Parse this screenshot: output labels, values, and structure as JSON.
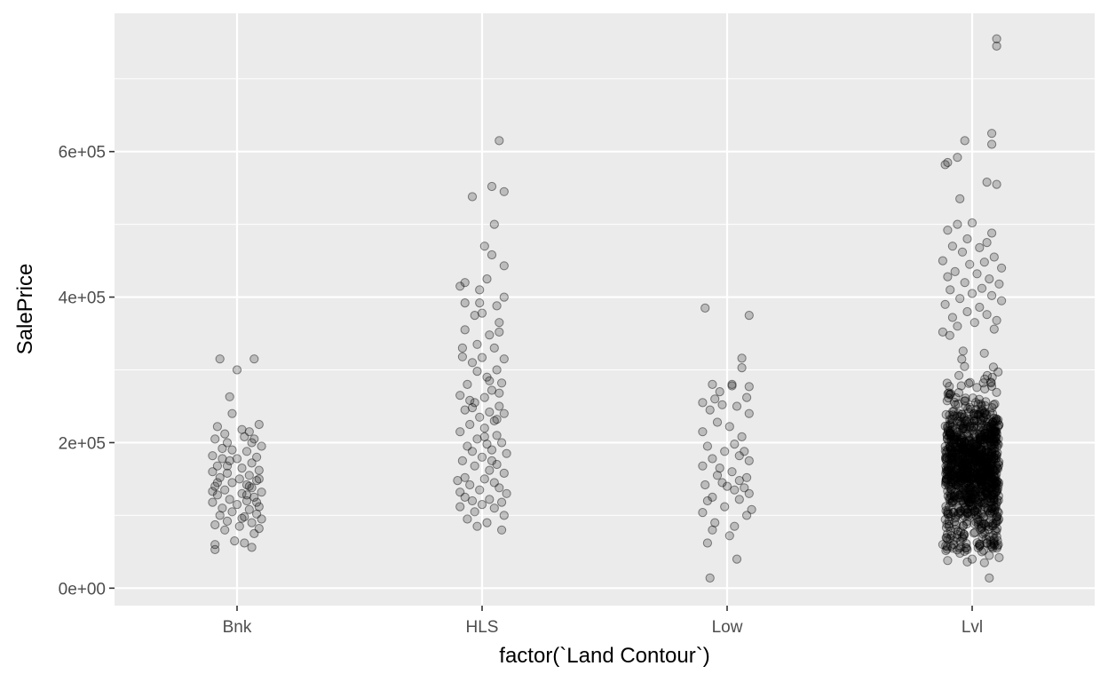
{
  "chart_data": {
    "type": "scatter",
    "style": "jitter",
    "title": "",
    "xlabel": "factor(`Land Contour`)",
    "ylabel": "SalePrice",
    "categories": [
      "Bnk",
      "HLS",
      "Low",
      "Lvl"
    ],
    "ylim": [
      -24000,
      790000
    ],
    "yticks": [
      {
        "value": 0,
        "label": "0e+00"
      },
      {
        "value": 200000,
        "label": "2e+05"
      },
      {
        "value": 400000,
        "label": "4e+05"
      },
      {
        "value": 600000,
        "label": "6e+05"
      }
    ],
    "grid": true,
    "legend": "none",
    "colors": {
      "panel": "#ebebeb",
      "grid": "#ffffff",
      "point_fill": "rgba(0,0,0,0.2)",
      "point_stroke": "rgba(0,0,0,0.45)"
    },
    "series": [
      {
        "category": "Bnk",
        "points": [
          [
            -0.07,
            315000
          ],
          [
            0.07,
            315000
          ],
          [
            0.0,
            300000
          ],
          [
            -0.03,
            263000
          ],
          [
            -0.02,
            240000
          ],
          [
            -0.08,
            222000
          ],
          [
            0.09,
            225000
          ],
          [
            0.02,
            218000
          ],
          [
            0.05,
            215000
          ],
          [
            -0.05,
            212000
          ],
          [
            -0.09,
            205000
          ],
          [
            0.03,
            208000
          ],
          [
            0.07,
            205000
          ],
          [
            -0.04,
            200000
          ],
          [
            0.1,
            195000
          ],
          [
            -0.06,
            192000
          ],
          [
            0.04,
            188000
          ],
          [
            -0.1,
            182000
          ],
          [
            0.08,
            180000
          ],
          [
            0.0,
            178000
          ],
          [
            -0.03,
            175000
          ],
          [
            0.06,
            172000
          ],
          [
            -0.08,
            168000
          ],
          [
            0.02,
            165000
          ],
          [
            0.09,
            162000
          ],
          [
            -0.1,
            160000
          ],
          [
            -0.04,
            158000
          ],
          [
            0.05,
            155000
          ],
          [
            -0.07,
            152000
          ],
          [
            0.01,
            150000
          ],
          [
            0.08,
            148000
          ],
          [
            -0.02,
            145000
          ],
          [
            0.04,
            142000
          ],
          [
            -0.09,
            140000
          ],
          [
            0.06,
            138000
          ],
          [
            -0.05,
            135000
          ],
          [
            0.1,
            132000
          ],
          [
            0.02,
            130000
          ],
          [
            -0.08,
            128000
          ],
          [
            0.07,
            125000
          ],
          [
            -0.03,
            122000
          ],
          [
            0.04,
            120000
          ],
          [
            -0.1,
            118000
          ],
          [
            0.0,
            115000
          ],
          [
            0.09,
            112000
          ],
          [
            -0.06,
            110000
          ],
          [
            0.05,
            108000
          ],
          [
            -0.02,
            105000
          ],
          [
            0.08,
            102000
          ],
          [
            -0.07,
            100000
          ],
          [
            0.03,
            98000
          ],
          [
            0.1,
            95000
          ],
          [
            -0.04,
            92000
          ],
          [
            0.06,
            90000
          ],
          [
            -0.09,
            87000
          ],
          [
            0.01,
            85000
          ],
          [
            0.09,
            82000
          ],
          [
            -0.05,
            80000
          ],
          [
            0.07,
            75000
          ],
          [
            -0.01,
            65000
          ],
          [
            0.03,
            62000
          ],
          [
            -0.09,
            60000
          ],
          [
            0.06,
            56000
          ],
          [
            -0.09,
            53000
          ],
          [
            0.05,
            140000
          ],
          [
            -0.06,
            178000
          ],
          [
            0.09,
            150000
          ],
          [
            -0.02,
            190000
          ],
          [
            0.04,
            128000
          ],
          [
            -0.08,
            145000
          ],
          [
            0.02,
            96000
          ],
          [
            0.08,
            118000
          ],
          [
            -0.04,
            168000
          ],
          [
            0.06,
            200000
          ],
          [
            -0.1,
            133000
          ]
        ]
      },
      {
        "category": "HLS",
        "points": [
          [
            0.07,
            615000
          ],
          [
            0.04,
            552000
          ],
          [
            0.09,
            545000
          ],
          [
            -0.04,
            538000
          ],
          [
            0.05,
            500000
          ],
          [
            0.01,
            470000
          ],
          [
            0.04,
            458000
          ],
          [
            0.09,
            443000
          ],
          [
            0.02,
            425000
          ],
          [
            -0.09,
            415000
          ],
          [
            -0.01,
            410000
          ],
          [
            0.09,
            400000
          ],
          [
            -0.07,
            392000
          ],
          [
            0.06,
            388000
          ],
          [
            0.0,
            378000
          ],
          [
            -0.03,
            375000
          ],
          [
            0.07,
            365000
          ],
          [
            -0.07,
            355000
          ],
          [
            0.03,
            348000
          ],
          [
            -0.02,
            335000
          ],
          [
            0.05,
            330000
          ],
          [
            -0.08,
            318000
          ],
          [
            0.0,
            317000
          ],
          [
            0.09,
            315000
          ],
          [
            -0.04,
            310000
          ],
          [
            0.06,
            300000
          ],
          [
            -0.02,
            298000
          ],
          [
            0.02,
            290000
          ],
          [
            -0.06,
            280000
          ],
          [
            0.08,
            282000
          ],
          [
            0.04,
            272000
          ],
          [
            -0.09,
            265000
          ],
          [
            0.01,
            262000
          ],
          [
            -0.03,
            255000
          ],
          [
            0.07,
            250000
          ],
          [
            -0.07,
            245000
          ],
          [
            0.03,
            242000
          ],
          [
            0.09,
            240000
          ],
          [
            -0.01,
            235000
          ],
          [
            0.05,
            230000
          ],
          [
            -0.05,
            225000
          ],
          [
            0.01,
            220000
          ],
          [
            -0.09,
            215000
          ],
          [
            0.06,
            210000
          ],
          [
            -0.02,
            205000
          ],
          [
            0.08,
            200000
          ],
          [
            0.02,
            198000
          ],
          [
            -0.06,
            195000
          ],
          [
            0.04,
            190000
          ],
          [
            -0.04,
            188000
          ],
          [
            0.1,
            185000
          ],
          [
            0.0,
            180000
          ],
          [
            -0.08,
            175000
          ],
          [
            0.06,
            170000
          ],
          [
            -0.03,
            168000
          ],
          [
            0.03,
            162000
          ],
          [
            0.09,
            158000
          ],
          [
            -0.07,
            152000
          ],
          [
            0.01,
            150000
          ],
          [
            -0.1,
            148000
          ],
          [
            0.05,
            145000
          ],
          [
            -0.05,
            142000
          ],
          [
            0.07,
            138000
          ],
          [
            -0.01,
            135000
          ],
          [
            0.1,
            130000
          ],
          [
            -0.07,
            125000
          ],
          [
            0.03,
            122000
          ],
          [
            -0.04,
            120000
          ],
          [
            0.08,
            118000
          ],
          [
            0.0,
            115000
          ],
          [
            -0.09,
            112000
          ],
          [
            0.05,
            110000
          ],
          [
            -0.03,
            105000
          ],
          [
            0.09,
            100000
          ],
          [
            -0.06,
            95000
          ],
          [
            0.02,
            90000
          ],
          [
            -0.02,
            85000
          ],
          [
            0.08,
            80000
          ],
          [
            -0.07,
            420000
          ],
          [
            0.07,
            352000
          ],
          [
            -0.01,
            392000
          ],
          [
            0.03,
            285000
          ],
          [
            -0.08,
            330000
          ],
          [
            0.06,
            232000
          ],
          [
            -0.04,
            248000
          ],
          [
            0.01,
            208000
          ],
          [
            -0.05,
            258000
          ],
          [
            0.04,
            175000
          ],
          [
            -0.09,
            132000
          ],
          [
            0.07,
            268000
          ]
        ]
      },
      {
        "category": "Low",
        "points": [
          [
            -0.09,
            385000
          ],
          [
            0.09,
            375000
          ],
          [
            0.06,
            316000
          ],
          [
            0.06,
            303000
          ],
          [
            -0.06,
            280000
          ],
          [
            0.02,
            278000
          ],
          [
            0.09,
            277000
          ],
          [
            -0.03,
            270000
          ],
          [
            -0.1,
            255000
          ],
          [
            -0.05,
            260000
          ],
          [
            0.08,
            262000
          ],
          [
            -0.02,
            252000
          ],
          [
            0.04,
            250000
          ],
          [
            -0.07,
            245000
          ],
          [
            0.09,
            240000
          ],
          [
            -0.1,
            215000
          ],
          [
            0.01,
            222000
          ],
          [
            -0.04,
            228000
          ],
          [
            0.06,
            208000
          ],
          [
            0.03,
            198000
          ],
          [
            -0.08,
            195000
          ],
          [
            0.07,
            188000
          ],
          [
            -0.01,
            188000
          ],
          [
            0.05,
            182000
          ],
          [
            -0.06,
            178000
          ],
          [
            0.09,
            175000
          ],
          [
            -0.1,
            168000
          ],
          [
            0.02,
            160000
          ],
          [
            -0.04,
            155000
          ],
          [
            0.08,
            152000
          ],
          [
            0.05,
            148000
          ],
          [
            -0.02,
            145000
          ],
          [
            0.0,
            140000
          ],
          [
            0.07,
            138000
          ],
          [
            -0.09,
            142000
          ],
          [
            0.03,
            135000
          ],
          [
            0.09,
            130000
          ],
          [
            -0.06,
            125000
          ],
          [
            0.05,
            122000
          ],
          [
            -0.08,
            120000
          ],
          [
            -0.01,
            112000
          ],
          [
            0.1,
            108000
          ],
          [
            -0.1,
            104000
          ],
          [
            0.08,
            100000
          ],
          [
            -0.05,
            90000
          ],
          [
            0.03,
            85000
          ],
          [
            -0.06,
            80000
          ],
          [
            0.01,
            72000
          ],
          [
            -0.08,
            62000
          ],
          [
            0.04,
            40000
          ],
          [
            -0.07,
            14000
          ],
          [
            0.02,
            280000
          ],
          [
            -0.03,
            165000
          ]
        ]
      },
      {
        "category": "Lvl",
        "dense_band": {
          "count": 1100,
          "center": 165000,
          "spread": 50000,
          "min": 50000,
          "max": 350000
        },
        "points": [
          [
            0.1,
            755000
          ],
          [
            0.1,
            745000
          ],
          [
            0.08,
            625000
          ],
          [
            0.08,
            610000
          ],
          [
            -0.03,
            615000
          ],
          [
            -0.06,
            592000
          ],
          [
            -0.1,
            585000
          ],
          [
            -0.11,
            582000
          ],
          [
            0.06,
            558000
          ],
          [
            0.1,
            555000
          ],
          [
            -0.05,
            535000
          ],
          [
            0.0,
            502000
          ],
          [
            -0.06,
            500000
          ],
          [
            -0.1,
            492000
          ],
          [
            0.08,
            488000
          ],
          [
            -0.02,
            480000
          ],
          [
            0.06,
            475000
          ],
          [
            -0.08,
            470000
          ],
          [
            0.03,
            468000
          ],
          [
            -0.04,
            462000
          ],
          [
            0.09,
            455000
          ],
          [
            -0.12,
            450000
          ],
          [
            0.05,
            448000
          ],
          [
            -0.01,
            445000
          ],
          [
            0.12,
            440000
          ],
          [
            -0.07,
            435000
          ],
          [
            0.02,
            432000
          ],
          [
            -0.1,
            428000
          ],
          [
            0.07,
            425000
          ],
          [
            -0.03,
            420000
          ],
          [
            0.11,
            418000
          ],
          [
            0.04,
            412000
          ],
          [
            -0.09,
            410000
          ],
          [
            0.0,
            405000
          ],
          [
            0.08,
            402000
          ],
          [
            -0.05,
            398000
          ],
          [
            0.12,
            395000
          ],
          [
            -0.11,
            390000
          ],
          [
            0.03,
            386000
          ],
          [
            -0.02,
            380000
          ],
          [
            0.06,
            376000
          ],
          [
            -0.08,
            372000
          ],
          [
            0.1,
            368000
          ],
          [
            0.01,
            365000
          ],
          [
            -0.06,
            360000
          ],
          [
            0.09,
            356000
          ],
          [
            -0.12,
            352000
          ],
          [
            0.05,
            35000
          ],
          [
            -0.1,
            38000
          ],
          [
            0.0,
            40000
          ],
          [
            0.07,
            45000
          ],
          [
            -0.05,
            48000
          ],
          [
            0.11,
            42000
          ],
          [
            -0.08,
            55000
          ],
          [
            0.03,
            58000
          ],
          [
            0.07,
            14000
          ],
          [
            -0.02,
            36000
          ],
          [
            0.09,
            62000
          ],
          [
            -0.12,
            60000
          ],
          [
            0.04,
            50000
          ]
        ]
      }
    ]
  }
}
